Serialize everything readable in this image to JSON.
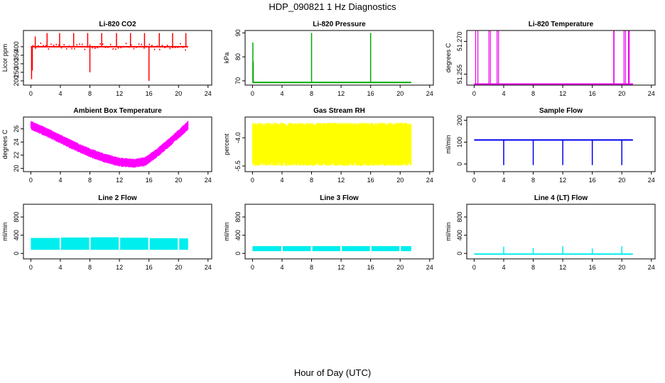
{
  "figure": {
    "title": "HDP_090821  1 Hz Diagnostics",
    "xlabel": "Hour of Day (UTC)"
  },
  "chart_data": [
    {
      "type": "line",
      "title": "Li-820 CO2",
      "ylabel": "Licor ppm",
      "color": "#ff0000",
      "xlim": [
        -1,
        24.5
      ],
      "ylim": [
        175,
        495
      ],
      "xticks": [
        "0",
        "4",
        "8",
        "12",
        "16",
        "20",
        "24"
      ],
      "xtick_values": [
        0,
        4,
        8,
        12,
        16,
        20,
        24
      ],
      "yticks": [
        "200",
        "250",
        "300",
        "350",
        "400"
      ],
      "ytick_values": [
        200,
        250,
        300,
        350,
        400
      ],
      "baseline": 400,
      "x_end": 21.3,
      "spikes": [
        {
          "x": 0.1,
          "y": 210
        },
        {
          "x": 0.2,
          "y": 260
        },
        {
          "x": 0.6,
          "y": 460
        },
        {
          "x": 2.2,
          "y": 480
        },
        {
          "x": 3.9,
          "y": 480
        },
        {
          "x": 5.8,
          "y": 480
        },
        {
          "x": 7.7,
          "y": 480
        },
        {
          "x": 8.0,
          "y": 250
        },
        {
          "x": 9.6,
          "y": 480
        },
        {
          "x": 11.6,
          "y": 480
        },
        {
          "x": 13.5,
          "y": 480
        },
        {
          "x": 15.4,
          "y": 480
        },
        {
          "x": 16.0,
          "y": 200
        },
        {
          "x": 17.4,
          "y": 480
        },
        {
          "x": 19.2,
          "y": 480
        },
        {
          "x": 21.0,
          "y": 480
        }
      ]
    },
    {
      "type": "line",
      "title": "Li-820 Pressure",
      "ylabel": "kPa",
      "color": "#00aa00",
      "xlim": [
        -1,
        24.5
      ],
      "ylim": [
        68.2,
        91
      ],
      "xticks": [
        "0",
        "4",
        "8",
        "12",
        "16",
        "20",
        "24"
      ],
      "xtick_values": [
        0,
        4,
        8,
        12,
        16,
        20,
        24
      ],
      "yticks": [
        "70",
        "80",
        "90"
      ],
      "ytick_values": [
        70,
        80,
        90
      ],
      "baseline": 69.3,
      "x_end": 21.5,
      "spikes": [
        {
          "x": 0.05,
          "y": 86
        },
        {
          "x": 0.1,
          "y": 78
        },
        {
          "x": 8.0,
          "y": 90
        },
        {
          "x": 16.0,
          "y": 90
        }
      ]
    },
    {
      "type": "line",
      "title": "Li-820 Temperature",
      "ylabel": "degrees C",
      "color": "#ee00ee",
      "xlim": [
        -1,
        24.5
      ],
      "ylim": [
        51.25,
        51.275
      ],
      "xticks": [
        "0",
        "4",
        "8",
        "12",
        "16",
        "20",
        "24"
      ],
      "xtick_values": [
        0,
        4,
        8,
        12,
        16,
        20,
        24
      ],
      "yticks": [
        "51.255",
        "51.270"
      ],
      "ytick_values": [
        51.255,
        51.27
      ],
      "baseline": 51.2505,
      "x_end": 21.5,
      "pulses": [
        {
          "x0": 0.2,
          "x1": 0.5
        },
        {
          "x0": 2.0,
          "x1": 2.2
        },
        {
          "x0": 3.1,
          "x1": 3.3
        },
        {
          "x0": 18.9,
          "x1": 18.95
        },
        {
          "x0": 20.3,
          "x1": 20.5
        },
        {
          "x0": 20.9,
          "x1": 21.0
        }
      ]
    },
    {
      "type": "line",
      "title": "Ambient Box Temperature",
      "ylabel": "degrees C",
      "color": "#ff00ff",
      "xlim": [
        -1,
        24.5
      ],
      "ylim": [
        19.5,
        27.8
      ],
      "xticks": [
        "0",
        "4",
        "8",
        "12",
        "16",
        "20",
        "24"
      ],
      "xtick_values": [
        0,
        4,
        8,
        12,
        16,
        20,
        24
      ],
      "yticks": [
        "20",
        "22",
        "24",
        "26"
      ],
      "ytick_values": [
        20,
        22,
        24,
        26
      ],
      "trend": [
        [
          0,
          26.6
        ],
        [
          2,
          25.6
        ],
        [
          4,
          24.5
        ],
        [
          6,
          23.4
        ],
        [
          8,
          22.4
        ],
        [
          10,
          21.6
        ],
        [
          12,
          21.0
        ],
        [
          14,
          20.8
        ],
        [
          15.5,
          21.1
        ],
        [
          17,
          22.3
        ],
        [
          19,
          24.2
        ],
        [
          21.3,
          26.6
        ]
      ],
      "noise": 0.8
    },
    {
      "type": "line",
      "title": "Gas Stream RH",
      "ylabel": "percent",
      "color": "#ffff00",
      "xlim": [
        -1,
        24.5
      ],
      "ylim": [
        -5.8,
        -2.9
      ],
      "xticks": [
        "0",
        "4",
        "8",
        "12",
        "16",
        "20",
        "24"
      ],
      "xtick_values": [
        0,
        4,
        8,
        12,
        16,
        20,
        24
      ],
      "yticks": [
        "-5.5",
        "-4.0"
      ],
      "ytick_values": [
        -5.5,
        -4.0
      ],
      "band": [
        -5.5,
        -3.2
      ],
      "x_end": 21.5
    },
    {
      "type": "line",
      "title": "Sample Flow",
      "ylabel": "ml/min",
      "color": "#0000ee",
      "xlim": [
        -1,
        24.5
      ],
      "ylim": [
        -35,
        215
      ],
      "xticks": [
        "0",
        "4",
        "8",
        "12",
        "16",
        "20",
        "24"
      ],
      "xtick_values": [
        0,
        4,
        8,
        12,
        16,
        20,
        24
      ],
      "yticks": [
        "0",
        "100",
        "200"
      ],
      "ytick_values": [
        0,
        100,
        200
      ],
      "baseline": 110,
      "x_end": 21.5,
      "dips": [
        {
          "x": 4.0,
          "y": -5
        },
        {
          "x": 8.0,
          "y": -5
        },
        {
          "x": 12.0,
          "y": -5
        },
        {
          "x": 16.0,
          "y": -5
        },
        {
          "x": 20.0,
          "y": -5
        }
      ]
    },
    {
      "type": "line",
      "title": "Line 2 Flow",
      "ylabel": "ml/min",
      "color": "#00eeee",
      "xlim": [
        -1,
        24.5
      ],
      "ylim": [
        -120,
        1080
      ],
      "xticks": [
        "0",
        "4",
        "8",
        "12",
        "16",
        "20",
        "24"
      ],
      "xtick_values": [
        0,
        4,
        8,
        12,
        16,
        20,
        24
      ],
      "yticks": [
        "0",
        "400",
        "800"
      ],
      "ytick_values": [
        0,
        400,
        800
      ],
      "segments": [
        {
          "x0": 0.0,
          "x1": 3.9,
          "lo": 80,
          "hi": 340
        },
        {
          "x0": 4.1,
          "x1": 7.9,
          "lo": 80,
          "hi": 350
        },
        {
          "x0": 8.1,
          "x1": 11.9,
          "lo": 80,
          "hi": 355
        },
        {
          "x0": 12.1,
          "x1": 15.9,
          "lo": 80,
          "hi": 345
        },
        {
          "x0": 16.1,
          "x1": 19.9,
          "lo": 80,
          "hi": 335
        },
        {
          "x0": 20.1,
          "x1": 21.3,
          "lo": 80,
          "hi": 330
        }
      ]
    },
    {
      "type": "line",
      "title": "Line 3 Flow",
      "ylabel": "ml/min",
      "color": "#00eeee",
      "xlim": [
        -1,
        24.5
      ],
      "ylim": [
        -120,
        1080
      ],
      "xticks": [
        "0",
        "4",
        "8",
        "12",
        "16",
        "20",
        "24"
      ],
      "xtick_values": [
        0,
        4,
        8,
        12,
        16,
        20,
        24
      ],
      "yticks": [
        "0",
        "400",
        "800"
      ],
      "ytick_values": [
        0,
        400,
        800
      ],
      "segments": [
        {
          "x0": 0.0,
          "x1": 3.9,
          "lo": 50,
          "hi": 160
        },
        {
          "x0": 4.1,
          "x1": 7.9,
          "lo": 50,
          "hi": 160
        },
        {
          "x0": 8.1,
          "x1": 11.9,
          "lo": 50,
          "hi": 160
        },
        {
          "x0": 12.1,
          "x1": 15.9,
          "lo": 50,
          "hi": 160
        },
        {
          "x0": 16.1,
          "x1": 19.9,
          "lo": 50,
          "hi": 160
        },
        {
          "x0": 20.1,
          "x1": 21.5,
          "lo": 50,
          "hi": 160
        }
      ]
    },
    {
      "type": "line",
      "title": "Line 4 (LT) Flow",
      "ylabel": "ml/min",
      "color": "#00eeee",
      "xlim": [
        -1,
        24.5
      ],
      "ylim": [
        -120,
        1080
      ],
      "xticks": [
        "0",
        "4",
        "8",
        "12",
        "16",
        "20",
        "24"
      ],
      "xtick_values": [
        0,
        4,
        8,
        12,
        16,
        20,
        24
      ],
      "yticks": [
        "0",
        "400",
        "800"
      ],
      "ytick_values": [
        0,
        400,
        800
      ],
      "baseline": -15,
      "x_end": 21.5,
      "spikes": [
        {
          "x": 4.0,
          "y": 150
        },
        {
          "x": 8.0,
          "y": 120
        },
        {
          "x": 12.0,
          "y": 160
        },
        {
          "x": 16.0,
          "y": 110
        },
        {
          "x": 20.0,
          "y": 160
        }
      ]
    }
  ]
}
